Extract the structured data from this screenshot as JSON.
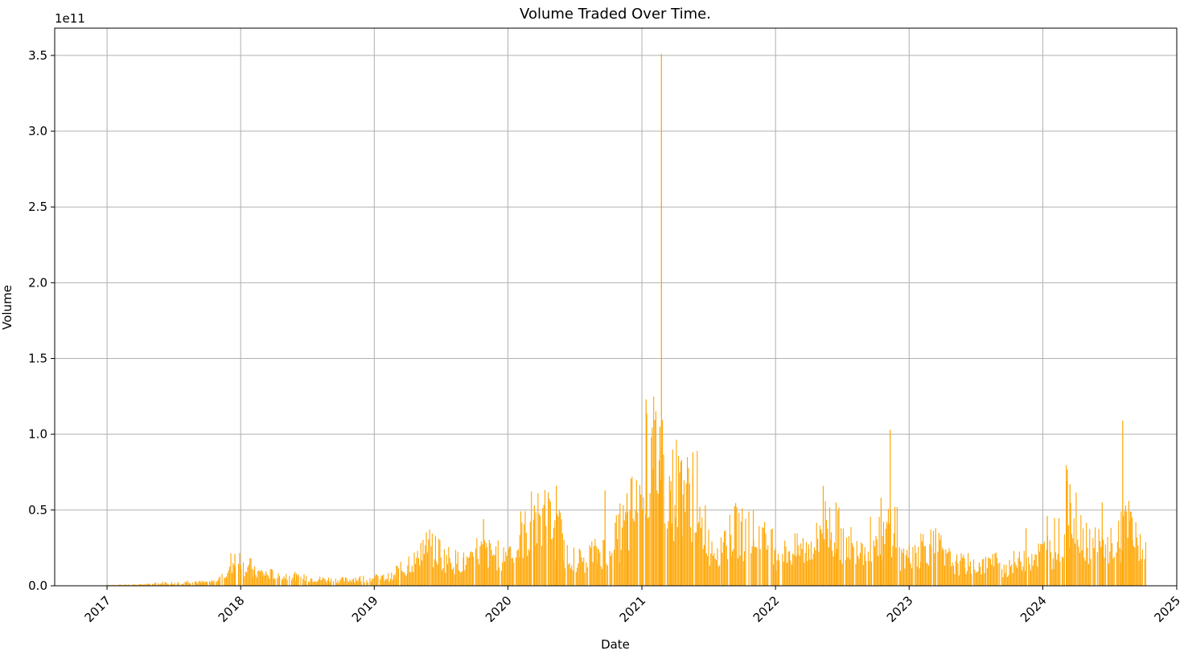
{
  "chart_data": {
    "type": "bar",
    "title": "Volume Traded Over Time.",
    "xlabel": "Date",
    "ylabel": "Volume",
    "y_offset_label": "1e11",
    "y_scale": 100000000000,
    "color": "#ffa500",
    "grid": true,
    "xlim": [
      "2016-08-11",
      "2025-01-01"
    ],
    "ylim": [
      0,
      3.68
    ],
    "x_ticks": [
      "2017",
      "2018",
      "2019",
      "2020",
      "2021",
      "2022",
      "2023",
      "2024",
      "2025"
    ],
    "y_ticks": [
      "0.0",
      "0.5",
      "1.0",
      "1.5",
      "2.0",
      "2.5",
      "3.0",
      "3.5"
    ],
    "series": [
      {
        "x": [
          "2017-01-01",
          "2017-02-01",
          "2017-03-01",
          "2017-04-01",
          "2017-05-01",
          "2017-06-01",
          "2017-07-01",
          "2017-08-01",
          "2017-09-01",
          "2017-10-01",
          "2017-11-01",
          "2017-12-01",
          "2018-01-01",
          "2018-02-01",
          "2018-03-01",
          "2018-04-01",
          "2018-05-01",
          "2018-06-01",
          "2018-07-01",
          "2018-08-01",
          "2018-09-01",
          "2018-10-01",
          "2018-11-01",
          "2018-12-01",
          "2019-01-01",
          "2019-02-01",
          "2019-03-01",
          "2019-04-01",
          "2019-05-01",
          "2019-06-01",
          "2019-07-01",
          "2019-08-01",
          "2019-09-01",
          "2019-10-01",
          "2019-11-01",
          "2019-12-01",
          "2020-01-01",
          "2020-02-01",
          "2020-03-01",
          "2020-04-01",
          "2020-05-01",
          "2020-06-01",
          "2020-07-01",
          "2020-08-01",
          "2020-09-01",
          "2020-10-01",
          "2020-11-01",
          "2020-12-01",
          "2021-01-01",
          "2021-02-01",
          "2021-03-01",
          "2021-04-01",
          "2021-05-01",
          "2021-06-01",
          "2021-07-01",
          "2021-08-01",
          "2021-09-01",
          "2021-10-01",
          "2021-11-01",
          "2021-12-01",
          "2022-01-01",
          "2022-02-01",
          "2022-03-01",
          "2022-04-01",
          "2022-05-01",
          "2022-06-01",
          "2022-07-01",
          "2022-08-01",
          "2022-09-01",
          "2022-10-01",
          "2022-11-01",
          "2022-12-01",
          "2023-01-01",
          "2023-02-01",
          "2023-03-01",
          "2023-04-01",
          "2023-05-01",
          "2023-06-01",
          "2023-07-01",
          "2023-08-01",
          "2023-09-01",
          "2023-10-01",
          "2023-11-01",
          "2023-12-01",
          "2024-01-01",
          "2024-02-01",
          "2024-03-01",
          "2024-04-01",
          "2024-05-01",
          "2024-06-01",
          "2024-07-01",
          "2024-08-01",
          "2024-09-01",
          "2024-10-01"
        ],
        "y": [
          0.006,
          0.007,
          0.008,
          0.01,
          0.015,
          0.02,
          0.02,
          0.03,
          0.025,
          0.03,
          0.08,
          0.16,
          0.13,
          0.09,
          0.08,
          0.065,
          0.07,
          0.055,
          0.05,
          0.045,
          0.04,
          0.04,
          0.05,
          0.05,
          0.055,
          0.06,
          0.11,
          0.17,
          0.26,
          0.24,
          0.19,
          0.17,
          0.16,
          0.24,
          0.22,
          0.21,
          0.26,
          0.36,
          0.44,
          0.45,
          0.36,
          0.22,
          0.18,
          0.22,
          0.24,
          0.33,
          0.4,
          0.52,
          0.8,
          0.9,
          0.65,
          0.7,
          0.62,
          0.38,
          0.28,
          0.33,
          0.38,
          0.36,
          0.34,
          0.3,
          0.22,
          0.24,
          0.25,
          0.3,
          0.42,
          0.36,
          0.3,
          0.3,
          0.32,
          0.32,
          0.42,
          0.2,
          0.24,
          0.28,
          0.25,
          0.18,
          0.15,
          0.15,
          0.14,
          0.16,
          0.12,
          0.16,
          0.2,
          0.22,
          0.24,
          0.32,
          0.55,
          0.36,
          0.3,
          0.26,
          0.3,
          0.4,
          0.3,
          0.2
        ],
        "spikes": [
          {
            "x": "2017-12-15",
            "y": 0.21
          },
          {
            "x": "2019-10-25",
            "y": 0.44
          },
          {
            "x": "2020-03-12",
            "y": 0.53
          },
          {
            "x": "2020-05-11",
            "y": 0.66
          },
          {
            "x": "2020-09-21",
            "y": 0.63
          },
          {
            "x": "2020-11-20",
            "y": 0.61
          },
          {
            "x": "2021-01-11",
            "y": 1.23
          },
          {
            "x": "2021-01-26",
            "y": 0.98
          },
          {
            "x": "2021-02-18",
            "y": 1.05
          },
          {
            "x": "2021-02-22",
            "y": 3.51
          },
          {
            "x": "2021-03-20",
            "y": 0.69
          },
          {
            "x": "2021-04-18",
            "y": 0.83
          },
          {
            "x": "2021-05-19",
            "y": 0.88
          },
          {
            "x": "2021-06-22",
            "y": 0.53
          },
          {
            "x": "2022-05-10",
            "y": 0.66
          },
          {
            "x": "2022-06-14",
            "y": 0.55
          },
          {
            "x": "2022-10-15",
            "y": 0.58
          },
          {
            "x": "2022-11-09",
            "y": 1.03
          },
          {
            "x": "2023-03-13",
            "y": 0.38
          },
          {
            "x": "2023-11-15",
            "y": 0.38
          },
          {
            "x": "2024-01-12",
            "y": 0.46
          },
          {
            "x": "2024-03-05",
            "y": 0.69
          },
          {
            "x": "2024-03-14",
            "y": 0.67
          },
          {
            "x": "2024-06-10",
            "y": 0.55
          },
          {
            "x": "2024-08-05",
            "y": 1.09
          },
          {
            "x": "2024-08-26",
            "y": 0.49
          }
        ]
      }
    ]
  }
}
